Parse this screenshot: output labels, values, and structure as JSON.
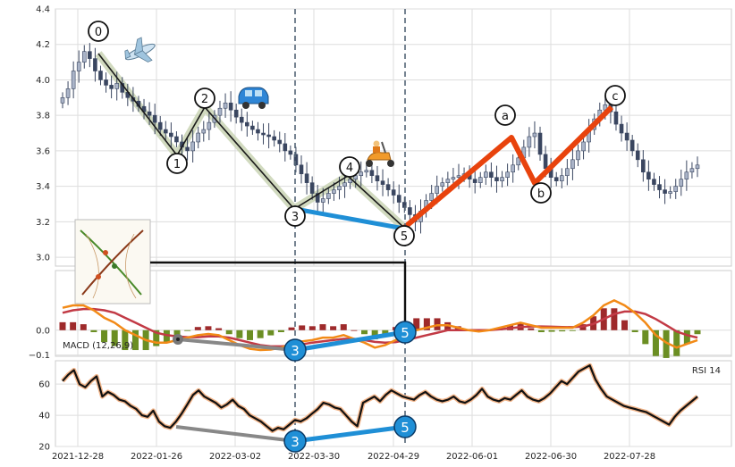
{
  "chart_data": [
    {
      "type": "candlestick",
      "panel": "price",
      "ylim": [
        2.95,
        4.4
      ],
      "yticks": [
        "3.0",
        "3.2",
        "3.4",
        "3.6",
        "3.8",
        "4.0",
        "4.2",
        "4.4"
      ],
      "xlabels": [
        "2021-12-28",
        "2022-01-26",
        "2022-03-02",
        "2022-03-30",
        "2022-04-29",
        "2022-06-01",
        "2022-06-30",
        "2022-07-28"
      ],
      "grid": true,
      "close": [
        3.9,
        3.95,
        4.05,
        4.1,
        4.16,
        4.12,
        4.05,
        4.0,
        3.97,
        3.95,
        3.98,
        3.93,
        3.9,
        3.88,
        3.85,
        3.82,
        3.8,
        3.76,
        3.72,
        3.7,
        3.68,
        3.65,
        3.62,
        3.6,
        3.65,
        3.7,
        3.72,
        3.76,
        3.8,
        3.84,
        3.87,
        3.83,
        3.79,
        3.76,
        3.74,
        3.72,
        3.7,
        3.69,
        3.68,
        3.66,
        3.64,
        3.6,
        3.58,
        3.52,
        3.47,
        3.42,
        3.36,
        3.31,
        3.33,
        3.36,
        3.38,
        3.4,
        3.42,
        3.44,
        3.46,
        3.48,
        3.49,
        3.46,
        3.43,
        3.41,
        3.38,
        3.35,
        3.31,
        3.28,
        3.24,
        3.2,
        3.26,
        3.32,
        3.36,
        3.4,
        3.42,
        3.44,
        3.45,
        3.46,
        3.47,
        3.44,
        3.42,
        3.45,
        3.48,
        3.45,
        3.43,
        3.45,
        3.48,
        3.52,
        3.56,
        3.62,
        3.68,
        3.7,
        3.58,
        3.5,
        3.45,
        3.43,
        3.46,
        3.5,
        3.55,
        3.6,
        3.65,
        3.72,
        3.78,
        3.83,
        3.86,
        3.82,
        3.75,
        3.7,
        3.66,
        3.6,
        3.55,
        3.48,
        3.44,
        3.41,
        3.38,
        3.36,
        3.37,
        3.4,
        3.44,
        3.48,
        3.5,
        3.52
      ]
    },
    {
      "type": "line",
      "panel": "macd",
      "name": "MACD (12,26,9)",
      "ylim": [
        -0.105,
        0.24
      ],
      "yticks": [
        "0.0",
        "−0.1"
      ],
      "colors": {
        "macd": "#f28a17",
        "signal": "#c23a45",
        "hist_pos": "#9e2a2b",
        "hist_neg": "#6b8e23"
      },
      "macd": [
        0.09,
        0.1,
        0.1,
        0.08,
        0.05,
        0.03,
        0.0,
        -0.02,
        -0.04,
        -0.05,
        -0.05,
        -0.04,
        -0.03,
        -0.02,
        -0.015,
        -0.02,
        -0.04,
        -0.06,
        -0.075,
        -0.08,
        -0.078,
        -0.07,
        -0.055,
        -0.045,
        -0.04,
        -0.03,
        -0.03,
        -0.02,
        -0.035,
        -0.05,
        -0.07,
        -0.06,
        -0.04,
        -0.02,
        0.0,
        0.01,
        0.02,
        0.02,
        0.01,
        0.0,
        -0.005,
        0.0,
        0.01,
        0.02,
        0.03,
        0.02,
        0.01,
        0.01,
        0.01,
        0.01,
        0.03,
        0.06,
        0.1,
        0.12,
        0.1,
        0.07,
        0.03,
        -0.02,
        -0.05,
        -0.07,
        -0.055,
        -0.04
      ],
      "signal": [
        0.07,
        0.08,
        0.085,
        0.085,
        0.08,
        0.07,
        0.05,
        0.03,
        0.01,
        -0.01,
        -0.02,
        -0.025,
        -0.028,
        -0.028,
        -0.025,
        -0.025,
        -0.03,
        -0.04,
        -0.05,
        -0.06,
        -0.065,
        -0.065,
        -0.062,
        -0.057,
        -0.05,
        -0.045,
        -0.04,
        -0.035,
        -0.035,
        -0.04,
        -0.047,
        -0.05,
        -0.048,
        -0.04,
        -0.03,
        -0.02,
        -0.01,
        0.0,
        0.0,
        0.0,
        0.0,
        0.0,
        0.004,
        0.008,
        0.013,
        0.015,
        0.015,
        0.014,
        0.013,
        0.012,
        0.015,
        0.025,
        0.045,
        0.065,
        0.075,
        0.075,
        0.065,
        0.045,
        0.02,
        -0.005,
        -0.02,
        -0.03
      ]
    },
    {
      "type": "line",
      "panel": "rsi",
      "name": "RSI 14",
      "ylim": [
        20,
        75
      ],
      "yticks": [
        "20",
        "40",
        "60"
      ],
      "values": [
        62,
        66,
        69,
        60,
        58,
        62,
        65,
        52,
        55,
        53,
        50,
        49,
        46,
        44,
        40,
        39,
        43,
        36,
        33,
        32,
        36,
        41,
        47,
        53,
        56,
        52,
        50,
        48,
        45,
        47,
        50,
        46,
        44,
        40,
        38,
        36,
        33,
        30,
        32,
        31,
        34,
        37,
        36,
        38,
        41,
        44,
        48,
        47,
        45,
        44,
        40,
        36,
        33,
        48,
        50,
        52,
        49,
        53,
        56,
        54,
        52,
        51,
        50,
        53,
        55,
        52,
        50,
        49,
        50,
        52,
        49,
        48,
        50,
        53,
        57,
        52,
        50,
        49,
        51,
        50,
        53,
        56,
        52,
        50,
        49,
        51,
        54,
        58,
        62,
        60,
        64,
        68,
        70,
        72,
        63,
        57,
        52,
        50,
        48,
        46,
        45,
        44,
        43,
        42,
        40,
        38,
        36,
        34,
        39,
        43,
        46,
        49,
        52
      ]
    }
  ],
  "annotations": {
    "wave_labels": [
      "0",
      "1",
      "2",
      "3",
      "4",
      "5",
      "a",
      "b",
      "c"
    ],
    "divergence_nodes": [
      "3",
      "5",
      "3",
      "5"
    ]
  }
}
